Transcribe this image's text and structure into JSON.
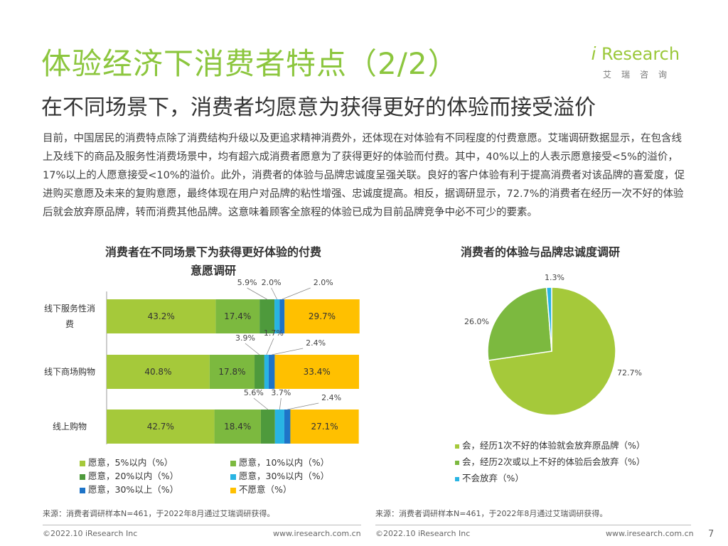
{
  "title": "体验经济下消费者特点（2/2）",
  "subtitle": "在不同场景下，消费者均愿意为获得更好的体验而接受溢价",
  "logo": {
    "word": "Research",
    "mark": "i",
    "cn": "艾瑞咨询"
  },
  "paragraph": "目前，中国居民的消费特点除了消费结构升级以及更追求精神消费外，还体现在对体验有不同程度的付费意愿。艾瑞调研数据显示，在包含线上及线下的商品及服务性消费场景中，均有超六成消费者愿意为了获得更好的体验而付费。其中，40%以上的人表示愿意接受<5%的溢价，17%以上的人愿意接受<10%的溢价。此外，消费者的体验与品牌忠诚度呈强关联。良好的客户体验有利于提高消费者对该品牌的喜爱度，促进购买意愿及未来的复购意愿，最终体现在用户对品牌的粘性增强、忠诚度提高。相反，据调研显示，72.7%的消费者在经历一次不好的体验后就会放弃原品牌，转而消费其他品牌。这意味着顾客全旅程的体验已成为目前品牌竞争中必不可少的要素。",
  "chart1": {
    "title_line1": "消费者在不同场景下为获得更好体验的付费",
    "title_line2": "意愿调研"
  },
  "chart2": {
    "title": "消费者的体验与品牌忠诚度调研"
  },
  "chart_data": [
    {
      "type": "bar",
      "orientation": "horizontal",
      "stacked": true,
      "title": "消费者在不同场景下为获得更好体验的付费意愿调研",
      "categories": [
        "线下服务性消费",
        "线下商场购物",
        "线上购物"
      ],
      "series": [
        {
          "name": "愿意，5%以内（%）",
          "color": "#a5c93a",
          "values": [
            43.2,
            40.8,
            42.7
          ],
          "labels": [
            "43.2%",
            "40.8%",
            "42.7%"
          ]
        },
        {
          "name": "愿意，10%以内（%）",
          "color": "#7cb93f",
          "values": [
            17.4,
            17.8,
            18.4
          ],
          "labels": [
            "17.4%",
            "17.8%",
            "18.4%"
          ]
        },
        {
          "name": "愿意，20%以内（%）",
          "color": "#4e9a3c",
          "values": [
            5.9,
            3.9,
            5.6
          ],
          "labels": [
            "5.9%",
            "3.9%",
            "5.6%"
          ]
        },
        {
          "name": "愿意，30%以内（%）",
          "color": "#28b4e3",
          "values": [
            2.0,
            1.7,
            3.7
          ],
          "labels": [
            "2.0%",
            "1.7%",
            "3.7%"
          ]
        },
        {
          "name": "愿意，30%以上（%）",
          "color": "#1e74c8",
          "values": [
            2.0,
            2.4,
            2.4
          ],
          "labels": [
            "2.0%",
            "2.4%",
            "2.4%"
          ]
        },
        {
          "name": "不愿意（%）",
          "color": "#ffc000",
          "values": [
            29.7,
            33.4,
            27.1
          ],
          "labels": [
            "29.7%",
            "33.4%",
            "27.1%"
          ]
        }
      ],
      "xlim": [
        0,
        100
      ],
      "legend": "bottom"
    },
    {
      "type": "pie",
      "title": "消费者的体验与品牌忠诚度调研",
      "slices": [
        {
          "name": "会，经历1次不好的体验就会放弃原品牌（%）",
          "value": 72.7,
          "label": "72.7%",
          "color": "#a5c93a"
        },
        {
          "name": "会，经历2次或以上不好的体验后会放弃（%）",
          "value": 26.0,
          "label": "26.0%",
          "color": "#7cb93f"
        },
        {
          "name": "不会放弃（%）",
          "value": 1.3,
          "label": "1.3%",
          "color": "#28b4e3"
        }
      ],
      "legend": "bottom"
    }
  ],
  "source_left": "来源：消费者调研样本N=461，于2022年8月通过艾瑞调研获得。",
  "source_right": "来源：消费者调研样本N=461，于2022年8月通过艾瑞调研获得。",
  "footer": {
    "copyright_left": "©2022.10 iResearch Inc",
    "url_left": "www.iresearch.com.cn",
    "copyright_right": "©2022.10 iResearch Inc",
    "url_right": "www.iresearch.com.cn",
    "page_number": "7"
  }
}
